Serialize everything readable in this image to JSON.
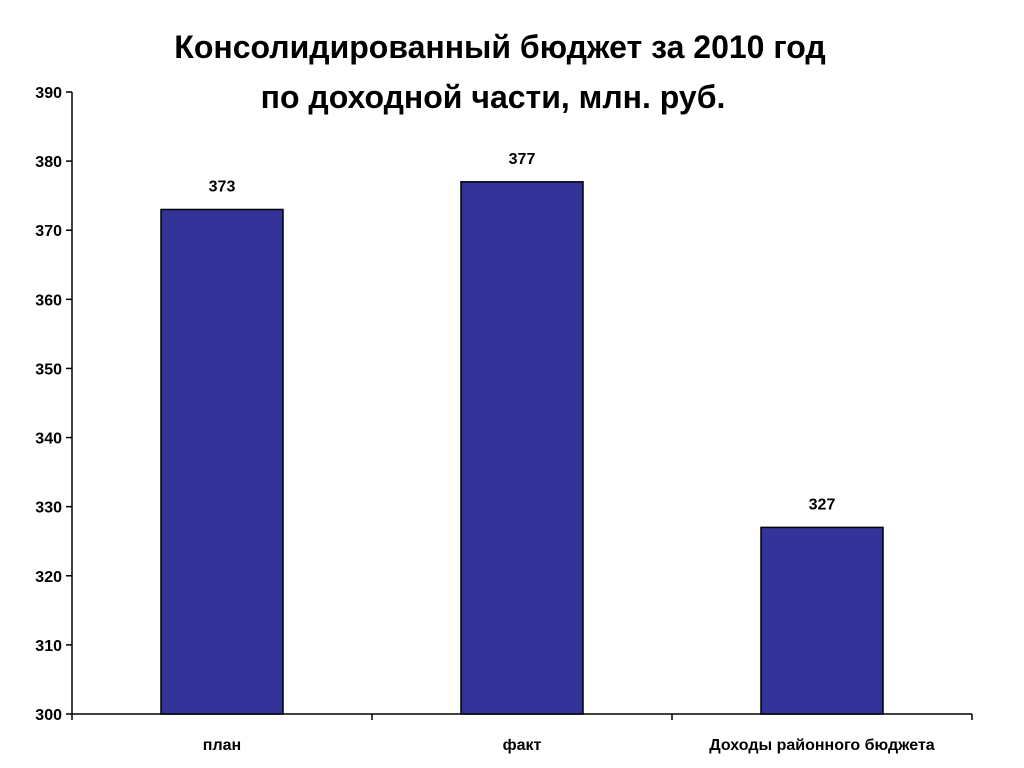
{
  "chart_data": {
    "type": "bar",
    "title_lines": [
      "Консолидированный бюджет за 2010 год",
      "по доходной части, млн. руб."
    ],
    "categories": [
      "план",
      "факт",
      "Доходы районного бюджета"
    ],
    "values": [
      373,
      377,
      327
    ],
    "data_labels": [
      "373",
      "377",
      "327"
    ],
    "ylim": [
      300,
      390
    ],
    "yticks": [
      300,
      310,
      320,
      330,
      340,
      350,
      360,
      370,
      380,
      390
    ],
    "xlabel": "",
    "ylabel": "",
    "grid": false,
    "legend": "none",
    "bar_color": "#333399",
    "bar_outline": "#000000"
  }
}
